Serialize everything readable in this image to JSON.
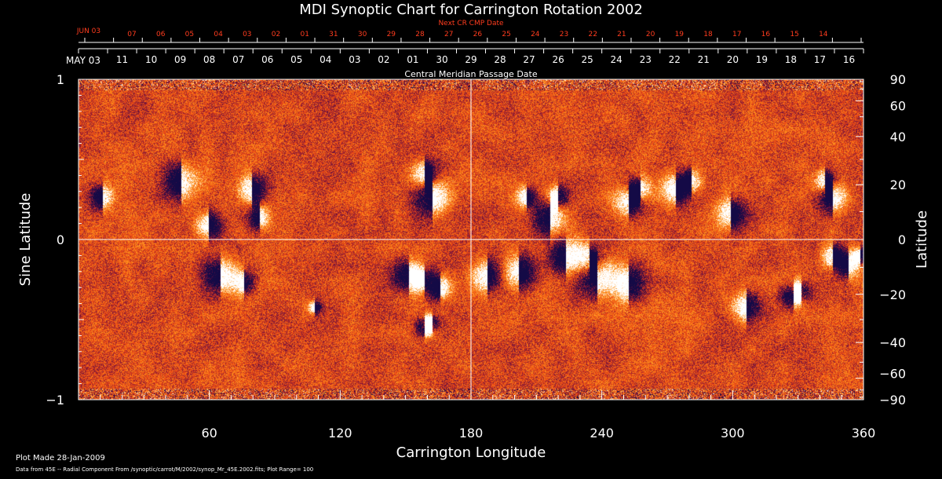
{
  "chart_data": {
    "type": "heatmap",
    "title": "MDI Synoptic Chart for Carrington Rotation 2002",
    "xlabel": "Carrington Longitude",
    "ylabel_left": "Sine Latitude",
    "ylabel_right": "Latitude",
    "top_axis_label": "Central Meridian Passage Date",
    "next_cr_label": "Next CR CMP Date",
    "xlim": [
      0,
      360
    ],
    "ylim": [
      -1,
      1
    ],
    "x_ticks": [
      60,
      120,
      180,
      240,
      300,
      360
    ],
    "x_tick_labels": [
      "60",
      "120",
      "180",
      "240",
      "300",
      "360"
    ],
    "y_ticks_left": [
      -1,
      0,
      1
    ],
    "y_tick_labels_left": [
      "−1",
      "0",
      "1"
    ],
    "y_ticks_right_deg": [
      90,
      60,
      40,
      20,
      0,
      -20,
      -40,
      -60,
      -90
    ],
    "y_tick_labels_right": [
      "90",
      "60",
      "40",
      "20",
      "0",
      "−20",
      "−40",
      "−60",
      "−90"
    ],
    "cmp_start_label": "MAY 03",
    "cmp_dates": [
      "11",
      "10",
      "09",
      "08",
      "07",
      "06",
      "05",
      "04",
      "03",
      "02",
      "01",
      "30",
      "29",
      "28",
      "27",
      "26",
      "25",
      "24",
      "23",
      "22",
      "21",
      "20",
      "19",
      "18",
      "17",
      "16"
    ],
    "next_cr_start_label": "JUN 03",
    "next_cr_dates": [
      "07",
      "06",
      "05",
      "04",
      "03",
      "02",
      "01",
      "31",
      "30",
      "29",
      "28",
      "27",
      "26",
      "25",
      "24",
      "23",
      "22",
      "21",
      "20",
      "19",
      "18",
      "17",
      "16",
      "15",
      "14"
    ],
    "colormap": {
      "negative": "#1a0a3c",
      "mid": "#ff5a14",
      "positive": "#ffffff"
    },
    "plot_range": 100,
    "grid": "cross at longitude 180 and sine latitude 0"
  },
  "footer": {
    "plot_made": "Plot Made 28-Jan-2009",
    "source": "Data from 45E -- Radial Component From /synoptic/carrot/M/2002/synop_Mr_45E.2002.fits; Plot Range=  100"
  },
  "colors": {
    "background": "#000000",
    "text": "#ffffff",
    "next_cr_text": "#ff3c1e"
  }
}
